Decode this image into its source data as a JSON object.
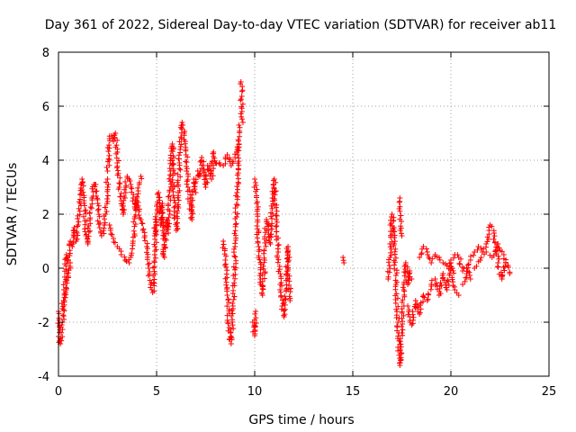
{
  "chart_data": {
    "type": "scatter",
    "title": "Day 361 of 2022, Sidereal Day-to-day VTEC variation (SDTVAR) for receiver ab11",
    "xlabel": "GPS time / hours",
    "ylabel": "SDTVAR / TECUs",
    "xlim": [
      0,
      25
    ],
    "ylim": [
      -4,
      8
    ],
    "x_ticks": [
      0,
      5,
      10,
      15,
      20,
      25
    ],
    "y_ticks": [
      -4,
      -2,
      0,
      2,
      4,
      6,
      8
    ],
    "grid": true,
    "marker": "+",
    "series_color": "#ff0000",
    "segments": [
      {
        "x": [
          0.0,
          0.05,
          0.1,
          0.2,
          0.3,
          0.4,
          0.5,
          0.6
        ],
        "y": [
          -1.6,
          -2.7,
          -2.8,
          -2.0,
          -1.2,
          -0.8,
          -0.3,
          0.2
        ]
      },
      {
        "x": [
          0.2,
          0.3,
          0.4,
          0.5,
          0.6,
          0.7,
          0.8,
          0.9,
          1.0,
          1.1,
          1.2,
          1.3,
          1.4,
          1.5
        ],
        "y": [
          -1.5,
          -1.0,
          0.5,
          0.2,
          1.0,
          0.8,
          1.5,
          1.0,
          1.6,
          2.4,
          3.3,
          2.5,
          1.2,
          0.9
        ]
      },
      {
        "x": [
          1.5,
          1.6,
          1.7,
          1.8,
          1.9,
          2.0,
          2.1,
          2.2,
          2.3,
          2.4,
          2.5
        ],
        "y": [
          1.0,
          1.8,
          2.6,
          3.1,
          3.1,
          2.4,
          1.5,
          1.2,
          1.4,
          2.0,
          3.3
        ]
      },
      {
        "x": [
          2.5,
          2.6,
          2.7,
          2.8,
          2.9,
          3.0,
          3.1,
          3.2,
          3.3,
          3.4,
          3.5
        ],
        "y": [
          3.6,
          4.8,
          4.9,
          4.7,
          5.0,
          4.3,
          3.0,
          2.5,
          2.0,
          3.2,
          3.4
        ]
      },
      {
        "x": [
          2.6,
          2.8,
          3.0,
          3.2,
          3.4,
          3.6,
          3.8,
          4.0,
          4.2
        ],
        "y": [
          1.6,
          1.1,
          0.8,
          0.5,
          0.3,
          0.2,
          1.0,
          2.6,
          3.4
        ]
      },
      {
        "x": [
          3.6,
          3.7,
          3.8,
          3.9,
          4.0,
          4.1,
          4.2,
          4.3,
          4.4,
          4.5,
          4.6,
          4.7,
          4.8,
          4.9,
          5.0
        ],
        "y": [
          3.3,
          3.0,
          2.6,
          2.2,
          2.5,
          2.1,
          1.8,
          1.4,
          1.2,
          0.8,
          0.0,
          -0.6,
          -0.9,
          0.5,
          1.8
        ]
      },
      {
        "x": [
          4.9,
          5.0,
          5.1,
          5.2,
          5.3,
          5.4,
          5.5,
          5.6,
          5.7,
          5.8,
          5.9,
          6.0,
          6.1,
          6.2,
          6.3,
          6.4,
          6.5,
          6.6,
          6.7,
          6.8,
          6.9,
          7.0
        ],
        "y": [
          1.2,
          2.3,
          2.8,
          1.6,
          2.4,
          0.4,
          1.8,
          1.3,
          3.6,
          4.6,
          2.6,
          1.4,
          2.8,
          4.4,
          5.4,
          5.0,
          4.2,
          3.0,
          2.4,
          1.8,
          3.3,
          2.8
        ]
      },
      {
        "x": [
          7.0,
          7.1,
          7.2,
          7.3,
          7.4,
          7.5,
          7.6,
          7.7,
          7.8,
          7.9,
          8.0,
          8.2,
          8.4,
          8.6,
          8.8,
          9.0,
          9.2
        ],
        "y": [
          3.2,
          3.6,
          3.4,
          4.1,
          3.6,
          3.0,
          3.8,
          3.7,
          3.3,
          4.3,
          3.9,
          3.9,
          3.8,
          4.2,
          3.8,
          4.1,
          4.6
        ]
      },
      {
        "x": [
          8.4,
          8.5,
          8.6,
          8.7,
          8.8,
          8.9,
          9.0,
          9.1,
          9.2
        ],
        "y": [
          1.0,
          0.3,
          -1.0,
          -2.2,
          -2.8,
          -1.5,
          0.8,
          2.8,
          5.3
        ]
      },
      {
        "x": [
          9.3,
          9.35,
          9.4
        ],
        "y": [
          6.9,
          5.8,
          5.4
        ]
      },
      {
        "x": [
          10.0,
          10.1,
          10.2,
          10.3,
          10.4,
          10.5,
          10.6,
          10.7,
          10.8,
          10.9,
          11.0,
          11.1,
          11.2,
          11.3,
          11.4,
          11.5,
          11.6,
          11.7,
          11.8
        ],
        "y": [
          3.3,
          2.4,
          0.8,
          -0.4,
          -1.0,
          0.3,
          1.8,
          1.4,
          0.9,
          2.6,
          3.3,
          1.8,
          0.6,
          -0.6,
          -1.4,
          -1.8,
          -0.8,
          0.8,
          -1.2
        ]
      },
      {
        "x": [
          9.9,
          10.0,
          10.05
        ],
        "y": [
          -2.0,
          -2.5,
          -1.6
        ]
      },
      {
        "x": [
          14.5,
          14.55
        ],
        "y": [
          0.4,
          0.2
        ]
      },
      {
        "x": [
          16.8,
          16.9,
          17.0,
          17.1,
          17.2,
          17.3,
          17.4,
          17.5,
          17.6,
          17.7,
          17.8,
          17.9,
          18.0
        ],
        "y": [
          -0.4,
          0.4,
          2.0,
          1.5,
          -0.6,
          -2.0,
          -3.6,
          -2.4,
          -0.8,
          0.2,
          -0.6,
          -0.1,
          -0.4
        ]
      },
      {
        "x": [
          17.4,
          17.5
        ],
        "y": [
          2.6,
          1.2
        ]
      },
      {
        "x": [
          17.8,
          17.9,
          18.0,
          18.2,
          18.4,
          18.6,
          18.8,
          19.0,
          19.2,
          19.4,
          19.6,
          19.8,
          20.0,
          20.2,
          20.4
        ],
        "y": [
          -1.4,
          -1.8,
          -2.1,
          -1.2,
          -1.7,
          -1.0,
          -1.2,
          -0.6,
          -0.4,
          -1.0,
          -0.2,
          -0.8,
          0.2,
          -0.8,
          -1.0
        ]
      },
      {
        "x": [
          18.4,
          18.6,
          18.8,
          19.0,
          19.2,
          19.4,
          19.6,
          19.8,
          20.0,
          20.2,
          20.4,
          20.6,
          20.8,
          21.0
        ],
        "y": [
          0.4,
          0.8,
          0.6,
          0.2,
          0.5,
          0.4,
          0.2,
          0.1,
          0.3,
          0.5,
          0.4,
          -0.1,
          0.0,
          -0.4
        ]
      },
      {
        "x": [
          20.6,
          20.8,
          21.0,
          21.2,
          21.4,
          21.6,
          21.8,
          22.0,
          22.2,
          22.4,
          22.6,
          22.8,
          23.0
        ],
        "y": [
          -0.6,
          -0.2,
          0.3,
          0.6,
          0.8,
          0.6,
          0.9,
          1.6,
          1.3,
          0.2,
          -0.4,
          0.2,
          -0.2
        ]
      },
      {
        "x": [
          21.2,
          21.5,
          21.8,
          22.1,
          22.4,
          22.7,
          22.9
        ],
        "y": [
          0.0,
          0.3,
          0.6,
          0.4,
          0.9,
          0.5,
          0.1
        ]
      }
    ]
  }
}
